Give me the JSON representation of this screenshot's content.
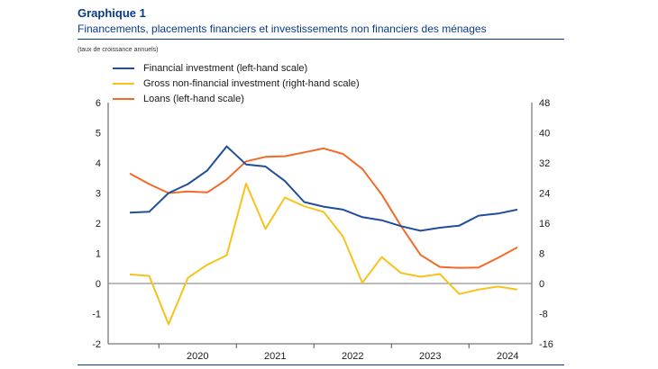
{
  "header": {
    "title": "Graphique 1",
    "subtitle": "Financements, placements financiers et investissements non financiers des ménages",
    "units": "(taux de croissance annuels)"
  },
  "colors": {
    "financial": "#1f4e9c",
    "gross": "#f7c21b",
    "loans": "#f26a2a",
    "rule": "#0a3a8c"
  },
  "chart_data": {
    "type": "line",
    "title": "",
    "x": [
      "2019-Q3",
      "2019-Q4",
      "2020-Q1",
      "2020-Q2",
      "2020-Q3",
      "2020-Q4",
      "2021-Q1",
      "2021-Q2",
      "2021-Q3",
      "2021-Q4",
      "2022-Q1",
      "2022-Q2",
      "2022-Q3",
      "2022-Q4",
      "2023-Q1",
      "2023-Q2",
      "2023-Q3",
      "2023-Q4",
      "2024-Q1",
      "2024-Q2",
      "2024-Q3"
    ],
    "series": [
      {
        "name": "Financial investment (left-hand scale)",
        "axis": "left",
        "values": [
          2.35,
          2.38,
          3.0,
          3.3,
          3.75,
          4.55,
          3.95,
          3.88,
          3.4,
          2.7,
          2.55,
          2.45,
          2.2,
          2.1,
          1.9,
          1.75,
          1.85,
          1.92,
          2.25,
          2.32,
          2.45
        ]
      },
      {
        "name": "Gross non-financial investment (right-hand scale)",
        "axis": "right",
        "values": [
          2.4,
          2.0,
          -10.8,
          1.5,
          5.0,
          7.5,
          26.5,
          14.5,
          22.8,
          20.5,
          19.0,
          12.5,
          0.2,
          7.0,
          2.8,
          1.8,
          2.5,
          -2.8,
          -1.6,
          -0.8,
          -1.6
        ]
      },
      {
        "name": "Loans (left-hand scale)",
        "axis": "left",
        "values": [
          3.65,
          3.3,
          3.0,
          3.05,
          3.02,
          3.45,
          4.05,
          4.2,
          4.22,
          4.35,
          4.48,
          4.3,
          3.8,
          2.95,
          1.9,
          0.95,
          0.55,
          0.52,
          0.53,
          0.85,
          1.2
        ]
      }
    ],
    "x_tick_labels": [
      "2020",
      "2021",
      "2022",
      "2023",
      "2024"
    ],
    "x_tick_positions": [
      "2020-Q2",
      "2021-Q2",
      "2022-Q2",
      "2023-Q2",
      "2024-Q2"
    ],
    "ylim_left": [
      -2,
      6
    ],
    "yticks_left": [
      "6",
      "5",
      "4",
      "3",
      "2",
      "1",
      "0",
      "-1",
      "-2"
    ],
    "ylim_right": [
      -16,
      48
    ],
    "yticks_right": [
      "48",
      "40",
      "32",
      "24",
      "16",
      "8",
      "0",
      "-8",
      "-16"
    ],
    "legend_position": "top-left",
    "grid": false
  }
}
